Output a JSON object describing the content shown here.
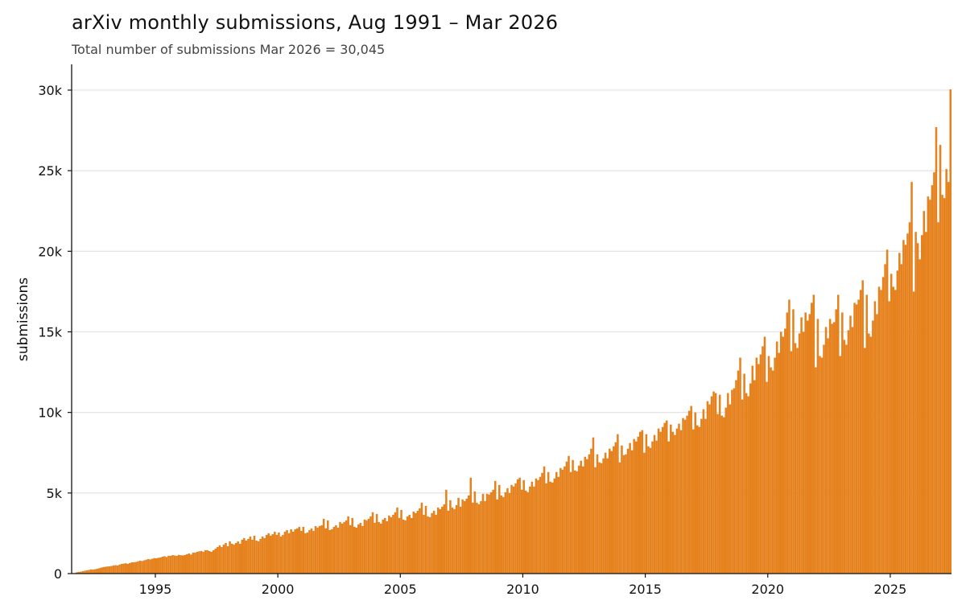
{
  "chart_data": {
    "type": "bar",
    "title": "arXiv monthly submissions, Aug 1991 – Mar 2026",
    "subtitle": "Total number of submissions Mar 2026 = 30,045",
    "xlabel": "",
    "ylabel": "submissions",
    "x_start": "1991-08",
    "x_end": "2026-03",
    "xlim": [
      "1991-08",
      "2026-03"
    ],
    "ylim": [
      0,
      31500
    ],
    "x_ticks": [
      1995,
      2000,
      2005,
      2010,
      2015,
      2020,
      2025
    ],
    "x_tick_labels": [
      "1995",
      "2000",
      "2005",
      "2010",
      "2015",
      "2020",
      "2025"
    ],
    "y_ticks": [
      0,
      5000,
      10000,
      15000,
      20000,
      25000,
      30000
    ],
    "y_tick_labels": [
      "0",
      "5k",
      "10k",
      "15k",
      "20k",
      "25k",
      "30k"
    ],
    "grid": "horizontal",
    "legend": "none",
    "bar_color": "#e6821e",
    "series": [
      {
        "values": [
          0,
          30,
          80,
          100,
          120,
          150,
          180,
          200,
          230,
          260,
          250,
          270,
          300,
          330,
          370,
          400,
          420,
          440,
          450,
          470,
          500,
          520,
          500,
          560,
          600,
          620,
          640,
          600,
          650,
          700,
          700,
          720,
          760,
          800,
          780,
          820,
          860,
          900,
          880,
          920,
          960,
          950,
          980,
          1000,
          1050,
          1080,
          1030,
          1100,
          1100,
          1150,
          1120,
          1100,
          1160,
          1140,
          1130,
          1150,
          1200,
          1250,
          1180,
          1300,
          1300,
          1350,
          1380,
          1400,
          1350,
          1450,
          1450,
          1400,
          1350,
          1450,
          1550,
          1650,
          1750,
          1650,
          1800,
          1900,
          1700,
          2000,
          1850,
          1800,
          1900,
          2000,
          1850,
          2100,
          2200,
          2050,
          2150,
          2300,
          2100,
          2350,
          2050,
          2000,
          2150,
          2300,
          2200,
          2400,
          2500,
          2350,
          2450,
          2600,
          2400,
          2550,
          2300,
          2400,
          2600,
          2700,
          2500,
          2750,
          2600,
          2750,
          2800,
          2900,
          2650,
          2900,
          2500,
          2550,
          2700,
          2800,
          2650,
          2950,
          2850,
          2950,
          3000,
          3400,
          2800,
          3300,
          2700,
          2750,
          2900,
          3000,
          2850,
          3200,
          3100,
          3200,
          3300,
          3550,
          3000,
          3450,
          2900,
          2850,
          3050,
          3150,
          2950,
          3350,
          3300,
          3400,
          3550,
          3800,
          3150,
          3700,
          3200,
          3100,
          3350,
          3450,
          3250,
          3600,
          3500,
          3650,
          3800,
          4100,
          3450,
          3950,
          3350,
          3300,
          3550,
          3650,
          3450,
          3850,
          3750,
          3900,
          4050,
          4400,
          3650,
          4200,
          3550,
          3500,
          3750,
          3900,
          3650,
          4100,
          4000,
          4150,
          4300,
          5200,
          3900,
          4550,
          4100,
          4000,
          4250,
          4700,
          4150,
          4600,
          4500,
          4650,
          4850,
          5950,
          4400,
          5100,
          4400,
          4300,
          4500,
          4950,
          4500,
          4950,
          4900,
          5050,
          5200,
          5750,
          4600,
          5500,
          4850,
          4750,
          5050,
          5300,
          5000,
          5500,
          5400,
          5600,
          5850,
          5950,
          5200,
          5800,
          5150,
          5050,
          5400,
          5700,
          5400,
          5900,
          5800,
          6000,
          6250,
          6650,
          5600,
          6300,
          5700,
          5650,
          5900,
          6300,
          6000,
          6550,
          6450,
          6650,
          6950,
          7300,
          6300,
          7050,
          6400,
          6350,
          6700,
          7000,
          6650,
          7250,
          7100,
          7400,
          7750,
          8450,
          6600,
          7400,
          6900,
          6850,
          7150,
          7500,
          7150,
          7750,
          7600,
          7900,
          8150,
          8650,
          6900,
          7950,
          7350,
          7400,
          7750,
          8100,
          7650,
          8350,
          8200,
          8500,
          8800,
          8900,
          7500,
          8650,
          7900,
          7800,
          8200,
          8600,
          8250,
          9000,
          8800,
          9100,
          9350,
          9500,
          8200,
          9250,
          8800,
          8600,
          9000,
          9300,
          8900,
          9650,
          9550,
          9800,
          10100,
          10400,
          8950,
          10000,
          9200,
          9100,
          9600,
          10200,
          9600,
          10700,
          10500,
          11000,
          11300,
          11200,
          9900,
          11100,
          9800,
          9700,
          10300,
          11200,
          10500,
          11400,
          11500,
          12000,
          12600,
          13400,
          10800,
          12400,
          11200,
          11000,
          11800,
          12900,
          12000,
          13400,
          13000,
          13600,
          14100,
          14700,
          11900,
          13500,
          12800,
          12600,
          13400,
          14400,
          13700,
          15000,
          14700,
          15200,
          16200,
          17000,
          13800,
          16400,
          14300,
          14000,
          14900,
          15900,
          15000,
          16200,
          15700,
          16100,
          16800,
          17300,
          12800,
          15800,
          13500,
          13400,
          14200,
          15300,
          14600,
          15800,
          15500,
          15600,
          16400,
          17300,
          13500,
          16200,
          14500,
          14200,
          15100,
          16000,
          15300,
          16800,
          16700,
          17000,
          17600,
          18200,
          14000,
          17300,
          14900,
          14700,
          15700,
          16900,
          16100,
          17800,
          17600,
          18400,
          19200,
          20100,
          16900,
          18600,
          17800,
          17600,
          18800,
          19900,
          19200,
          20700,
          20400,
          21100,
          21800,
          24300,
          17500,
          21200,
          20500,
          19500,
          21000,
          22500,
          21200,
          23400,
          23200,
          24100,
          24900,
          27700,
          21800,
          26600,
          23500,
          23300,
          25100,
          24300,
          30045
        ]
      }
    ]
  }
}
